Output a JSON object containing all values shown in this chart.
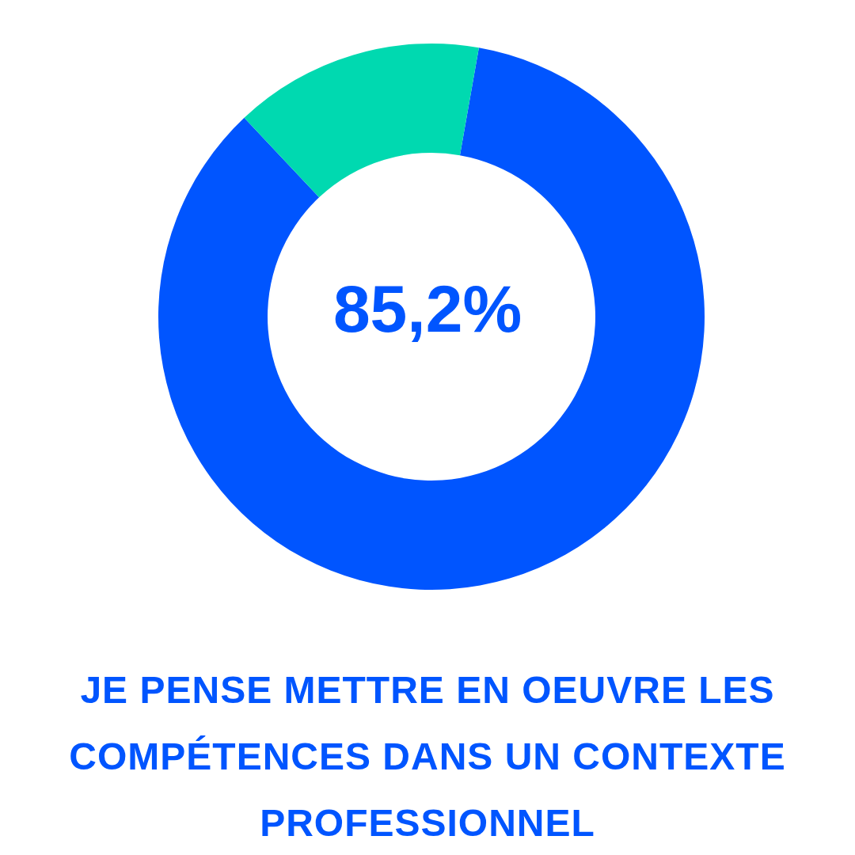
{
  "chart_data": {
    "type": "donut",
    "title": "JE PENSE METTRE EN OEUVRE LES COMPÉTENCES DANS UN CONTEXTE PROFESSIONNEL",
    "categories": [
      null,
      null
    ],
    "values": [
      85.2,
      14.8
    ],
    "colors": [
      "#0055ff",
      "#00d9b0"
    ],
    "annotations": [
      "85,2%"
    ]
  }
}
